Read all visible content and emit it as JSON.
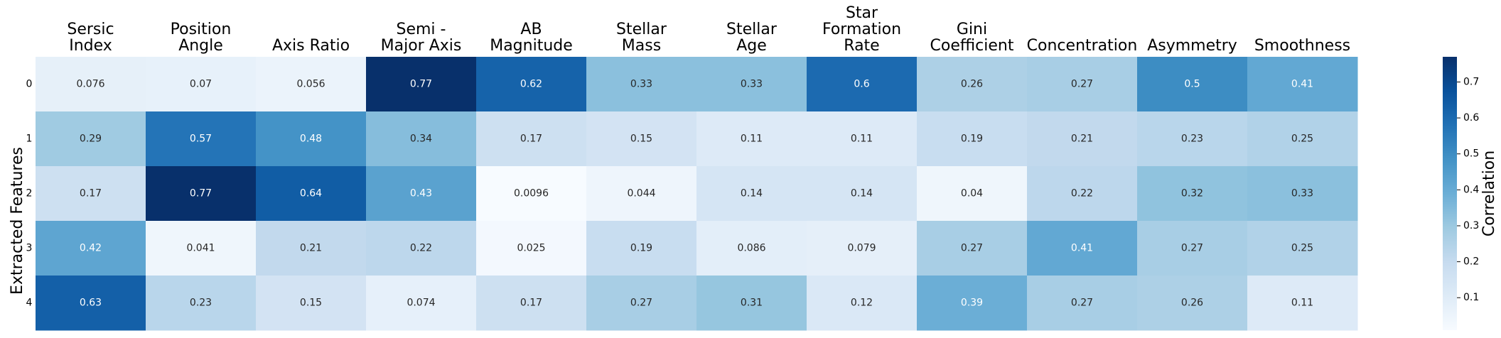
{
  "chart_data": {
    "type": "heatmap",
    "title": "",
    "xlabel": "",
    "ylabel": "Extracted Features",
    "columns": [
      [
        "Sersic",
        "Index"
      ],
      [
        "Position",
        "Angle"
      ],
      [
        "Axis Ratio"
      ],
      [
        "Semi -",
        "Major Axis"
      ],
      [
        "AB",
        "Magnitude"
      ],
      [
        "Stellar",
        "Mass"
      ],
      [
        "Stellar",
        "Age"
      ],
      [
        "Star",
        "Formation",
        "Rate"
      ],
      [
        "Gini",
        "Coefficient"
      ],
      [
        "Concentration"
      ],
      [
        "Asymmetry"
      ],
      [
        "Smoothness"
      ]
    ],
    "rows": [
      "0",
      "1",
      "2",
      "3",
      "4"
    ],
    "values": [
      [
        0.076,
        0.07,
        0.056,
        0.77,
        0.62,
        0.33,
        0.33,
        0.6,
        0.26,
        0.27,
        0.5,
        0.41
      ],
      [
        0.29,
        0.57,
        0.48,
        0.34,
        0.17,
        0.15,
        0.11,
        0.11,
        0.19,
        0.21,
        0.23,
        0.25
      ],
      [
        0.17,
        0.77,
        0.64,
        0.43,
        0.0096,
        0.044,
        0.14,
        0.14,
        0.04,
        0.22,
        0.32,
        0.33
      ],
      [
        0.42,
        0.041,
        0.21,
        0.22,
        0.025,
        0.19,
        0.086,
        0.079,
        0.27,
        0.41,
        0.27,
        0.25
      ],
      [
        0.63,
        0.23,
        0.15,
        0.074,
        0.17,
        0.27,
        0.31,
        0.12,
        0.39,
        0.27,
        0.26,
        0.11
      ]
    ],
    "colormap": "Blues",
    "vmin": 0.0096,
    "vmax": 0.77,
    "colorbar": {
      "label": "Correlation",
      "ticks": [
        "0.1",
        "0.2",
        "0.3",
        "0.4",
        "0.5",
        "0.6",
        "0.7"
      ],
      "tick_values": [
        0.1,
        0.2,
        0.3,
        0.4,
        0.5,
        0.6,
        0.7
      ],
      "position": "right"
    },
    "colors": {
      "low": "#f7fbff",
      "high": "#08306b",
      "text_dark": "#262626",
      "text_light": "#ffffff"
    }
  }
}
